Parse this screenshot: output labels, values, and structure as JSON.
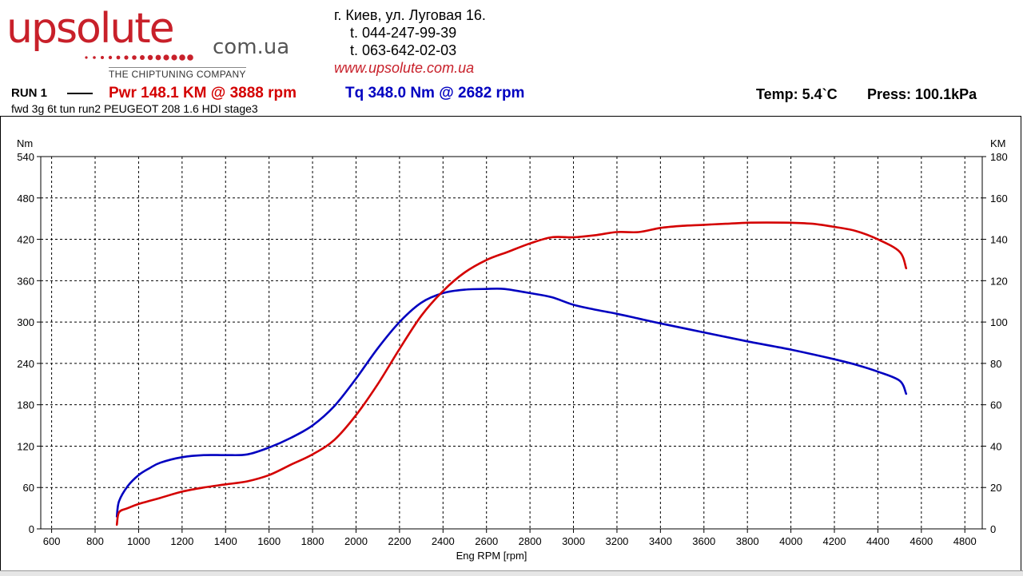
{
  "logo": {
    "main": "upsolute",
    "domain": "com.ua",
    "tagline": "THE CHIPTUNING COMPANY"
  },
  "contact": {
    "address": "г. Киев, ул. Луговая 16.",
    "phone1": "t.  044-247-99-39",
    "phone2": "t.  063-642-02-03",
    "website": "www.upsolute.com.ua"
  },
  "header": {
    "run": "RUN 1",
    "power": "Pwr  148.1 KM @ 3888 rpm",
    "torque": "Tq  348.0 Nm @ 2682 rpm",
    "temp": "Temp: 5.4`C",
    "press": "Press: 100.1kPa",
    "subtitle": "fwd 3g 6t tun run2 PEUGEOT 208 1.6 HDI stage3"
  },
  "colors": {
    "power": "#d40000",
    "torque": "#0000c0",
    "grid": "#000000"
  },
  "chart_data": {
    "type": "line",
    "xlabel": "Eng RPM [rpm]",
    "ylabel_left": "Nm",
    "ylabel_right": "KM",
    "xlim": [
      550,
      4880
    ],
    "ylim_left": [
      0,
      540
    ],
    "ylim_right": [
      0,
      180
    ],
    "x_ticks": [
      600,
      800,
      1000,
      1200,
      1400,
      1600,
      1800,
      2000,
      2200,
      2400,
      2600,
      2800,
      3000,
      3200,
      3400,
      3600,
      3800,
      4000,
      4200,
      4400,
      4600,
      4800
    ],
    "y_ticks_left": [
      0,
      60,
      120,
      180,
      240,
      300,
      360,
      420,
      480,
      540
    ],
    "y_ticks_right": [
      0,
      20,
      40,
      60,
      80,
      100,
      120,
      140,
      160,
      180
    ],
    "grid": true,
    "series": [
      {
        "axis": "left",
        "color": "#0000c0",
        "x": [
          900,
          910,
          950,
          1000,
          1050,
          1100,
          1200,
          1300,
          1400,
          1500,
          1600,
          1700,
          1800,
          1900,
          2000,
          2100,
          2200,
          2300,
          2400,
          2500,
          2600,
          2682,
          2800,
          2900,
          3000,
          3100,
          3200,
          3300,
          3400,
          3600,
          3800,
          4000,
          4200,
          4300,
          4400,
          4500,
          4530
        ],
        "y": [
          18,
          40,
          62,
          78,
          88,
          96,
          104,
          107,
          107,
          108,
          118,
          132,
          150,
          178,
          218,
          262,
          300,
          328,
          342,
          347,
          348,
          348,
          342,
          336,
          325,
          318,
          312,
          305,
          298,
          285,
          272,
          260,
          246,
          238,
          228,
          215,
          196
        ]
      },
      {
        "axis": "right",
        "color": "#d40000",
        "x": [
          900,
          910,
          950,
          1000,
          1100,
          1200,
          1300,
          1400,
          1500,
          1600,
          1700,
          1800,
          1900,
          2000,
          2100,
          2200,
          2300,
          2400,
          2500,
          2600,
          2700,
          2800,
          2900,
          3000,
          3100,
          3200,
          3300,
          3400,
          3500,
          3600,
          3700,
          3800,
          3888,
          4000,
          4100,
          4200,
          4300,
          4400,
          4500,
          4530
        ],
        "y": [
          2,
          8,
          10,
          12,
          15,
          18,
          20,
          21.5,
          23,
          26,
          31,
          36,
          43,
          55,
          70,
          87,
          103,
          115,
          124,
          130,
          134,
          138,
          141,
          141,
          142,
          143.5,
          143.5,
          145.5,
          146.5,
          147,
          147.5,
          148,
          148.1,
          148,
          147.5,
          146,
          144,
          140,
          134,
          126
        ]
      }
    ]
  }
}
